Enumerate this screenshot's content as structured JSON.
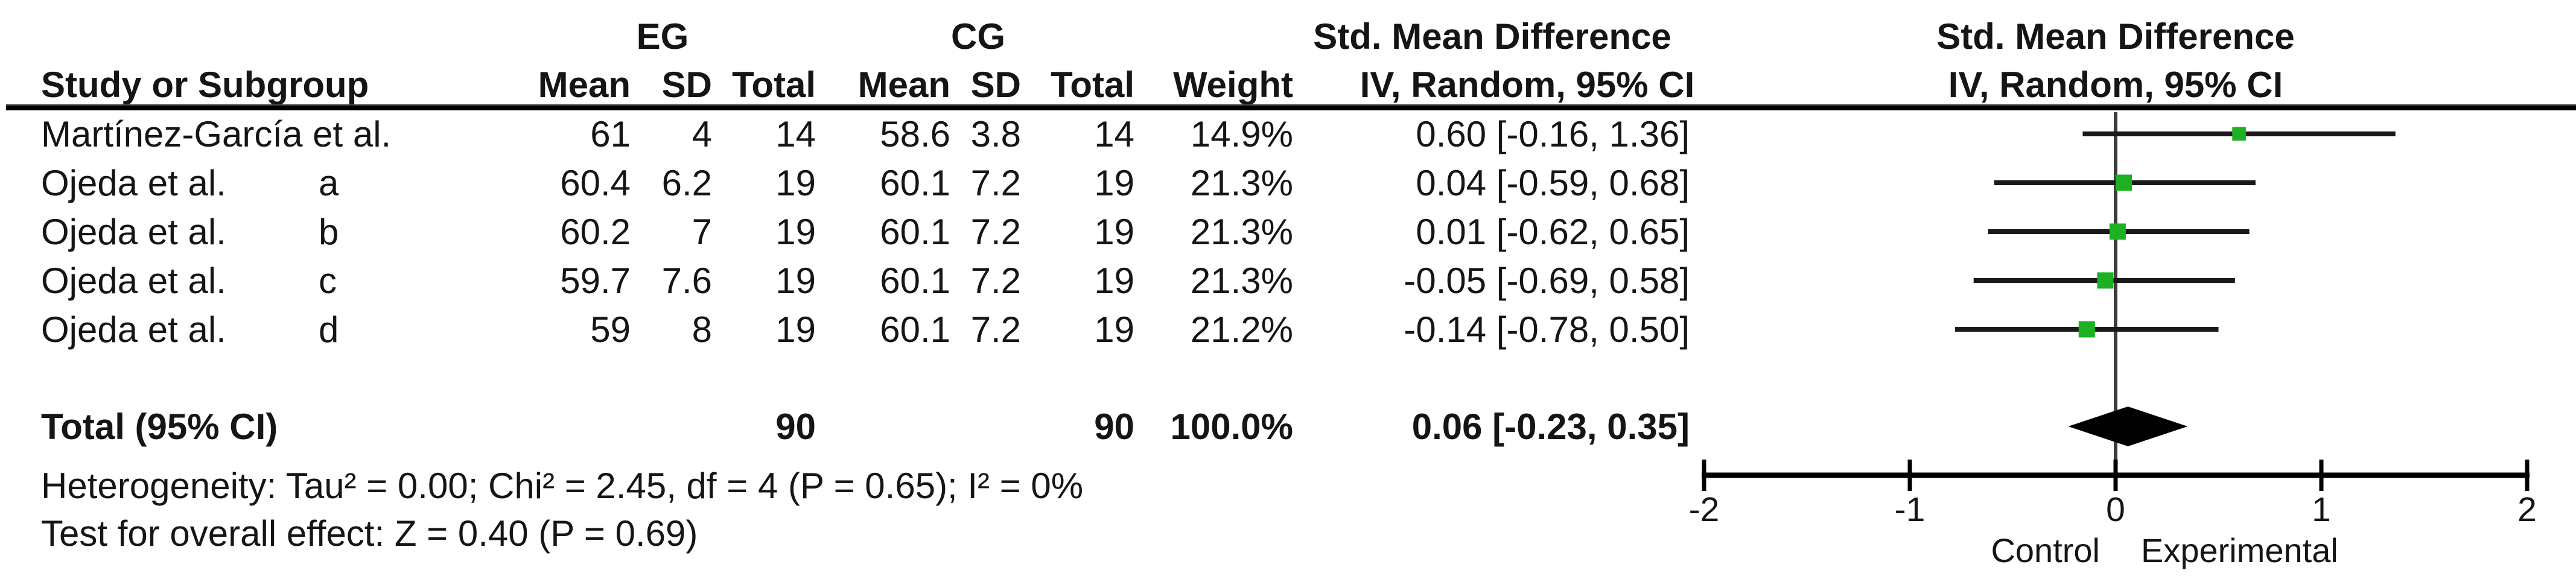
{
  "table": {
    "group_headers": {
      "eg": "EG",
      "cg": "CG",
      "smd_left": "Std. Mean Difference",
      "smd_right": "Std. Mean Difference"
    },
    "col_headers": {
      "study": "Study or Subgroup",
      "eg_mean": "Mean",
      "eg_sd": "SD",
      "eg_total": "Total",
      "cg_mean": "Mean",
      "cg_sd": "SD",
      "cg_total": "Total",
      "weight": "Weight",
      "iv_left": "IV, Random, 95% CI",
      "iv_right": "IV, Random, 95% CI"
    },
    "rows": [
      {
        "study": "Martínez-García et al.",
        "sub": "",
        "eg_mean": "61",
        "eg_sd": "4",
        "eg_total": "14",
        "cg_mean": "58.6",
        "cg_sd": "3.8",
        "cg_total": "14",
        "weight": "14.9%",
        "ci_text": "0.60 [-0.16, 1.36]"
      },
      {
        "study": "Ojeda et al.",
        "sub": "a",
        "eg_mean": "60.4",
        "eg_sd": "6.2",
        "eg_total": "19",
        "cg_mean": "60.1",
        "cg_sd": "7.2",
        "cg_total": "19",
        "weight": "21.3%",
        "ci_text": "0.04 [-0.59, 0.68]"
      },
      {
        "study": "Ojeda et al.",
        "sub": "b",
        "eg_mean": "60.2",
        "eg_sd": "7",
        "eg_total": "19",
        "cg_mean": "60.1",
        "cg_sd": "7.2",
        "cg_total": "19",
        "weight": "21.3%",
        "ci_text": "0.01 [-0.62, 0.65]"
      },
      {
        "study": "Ojeda et al.",
        "sub": "c",
        "eg_mean": "59.7",
        "eg_sd": "7.6",
        "eg_total": "19",
        "cg_mean": "60.1",
        "cg_sd": "7.2",
        "cg_total": "19",
        "weight": "21.3%",
        "ci_text": "-0.05 [-0.69, 0.58]"
      },
      {
        "study": "Ojeda et al.",
        "sub": "d",
        "eg_mean": "59",
        "eg_sd": "8",
        "eg_total": "19",
        "cg_mean": "60.1",
        "cg_sd": "7.2",
        "cg_total": "19",
        "weight": "21.2%",
        "ci_text": "-0.14 [-0.78, 0.50]"
      }
    ],
    "total_row": {
      "label": "Total (95% CI)",
      "eg_total": "90",
      "cg_total": "90",
      "weight": "100.0%",
      "ci_text": "0.06 [-0.23, 0.35]"
    },
    "footnotes": {
      "heterogeneity": "Heterogeneity: Tau² = 0.00; Chi² = 2.45, df = 4 (P = 0.65); I² = 0%",
      "overall_effect": "Test for overall effect: Z = 0.40 (P = 0.69)"
    }
  },
  "chart_data": {
    "type": "scatter",
    "subtype": "forest-plot",
    "title": "Std. Mean Difference",
    "subtitle": "IV, Random, 95% CI",
    "xlim": [
      -2,
      2
    ],
    "xticks": [
      -2,
      -1,
      0,
      1,
      2
    ],
    "xlabel_left": "Control",
    "xlabel_right": "Experimental",
    "grid": false,
    "studies": [
      {
        "label": "Martínez-García et al.",
        "subgroup": "",
        "effect": 0.6,
        "ci_low": -0.16,
        "ci_high": 1.36,
        "weight_pct": 14.9
      },
      {
        "label": "Ojeda et al.",
        "subgroup": "a",
        "effect": 0.04,
        "ci_low": -0.59,
        "ci_high": 0.68,
        "weight_pct": 21.3
      },
      {
        "label": "Ojeda et al.",
        "subgroup": "b",
        "effect": 0.01,
        "ci_low": -0.62,
        "ci_high": 0.65,
        "weight_pct": 21.3
      },
      {
        "label": "Ojeda et al.",
        "subgroup": "c",
        "effect": -0.05,
        "ci_low": -0.69,
        "ci_high": 0.58,
        "weight_pct": 21.3
      },
      {
        "label": "Ojeda et al.",
        "subgroup": "d",
        "effect": -0.14,
        "ci_low": -0.78,
        "ci_high": 0.5,
        "weight_pct": 21.2
      }
    ],
    "total": {
      "label": "Total (95% CI)",
      "effect": 0.06,
      "ci_low": -0.23,
      "ci_high": 0.35,
      "weight_pct": 100.0
    },
    "marker_color": "#1CB022",
    "ci_line_color": "#1a1a1a",
    "diamond_color": "#000000",
    "axis_color": "#000000",
    "zero_line_color": "#3c3c3c"
  }
}
